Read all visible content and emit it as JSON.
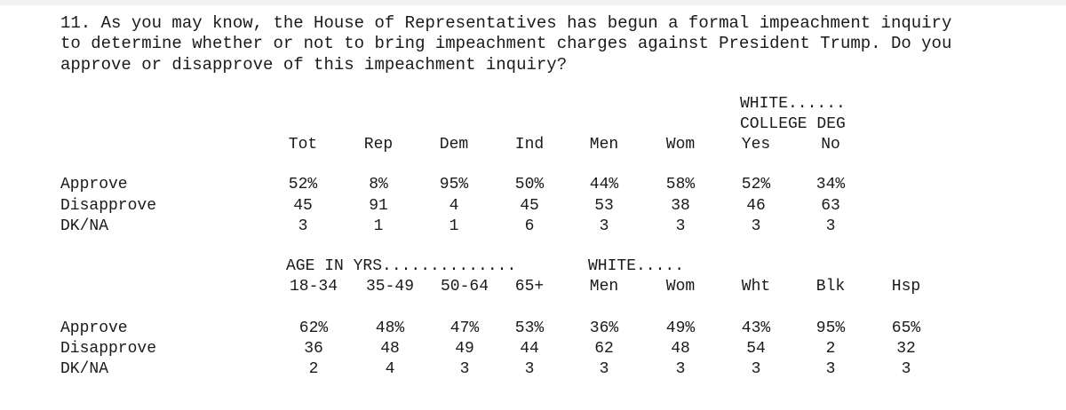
{
  "question": {
    "line1": "11. As you may know, the House of Representatives has begun a formal impeachment inquiry",
    "line2": "to determine whether or not to bring impeachment charges against President Trump. Do you",
    "line3": "approve or disapprove of this impeachment inquiry?"
  },
  "table1": {
    "group_headers": [
      {
        "line1": "WHITE......",
        "line2": "COLLEGE DEG"
      }
    ],
    "columns": [
      "Tot",
      "Rep",
      "Dem",
      "Ind",
      "Men",
      "Wom",
      "Yes",
      "No"
    ],
    "rows": [
      {
        "label": "Approve",
        "values": [
          "52%",
          "8%",
          "95%",
          "50%",
          "44%",
          "58%",
          "52%",
          "34%"
        ]
      },
      {
        "label": "Disapprove",
        "values": [
          "45",
          "91",
          "4",
          "45",
          "53",
          "38",
          "46",
          "63"
        ]
      },
      {
        "label": "DK/NA",
        "values": [
          "3",
          "1",
          "1",
          "6",
          "3",
          "3",
          "3",
          "3"
        ]
      }
    ]
  },
  "table2": {
    "group_headers": [
      {
        "line1": "AGE IN YRS.............."
      },
      {
        "line1": "WHITE....."
      }
    ],
    "columns": [
      "18-34",
      "35-49",
      "50-64",
      "65+",
      "Men",
      "Wom",
      "Wht",
      "Blk",
      "Hsp"
    ],
    "rows": [
      {
        "label": "Approve",
        "values": [
          "62%",
          "48%",
          "47%",
          "53%",
          "36%",
          "49%",
          "43%",
          "95%",
          "65%"
        ]
      },
      {
        "label": "Disapprove",
        "values": [
          "36",
          "48",
          "49",
          "44",
          "62",
          "48",
          "54",
          "2",
          "32"
        ]
      },
      {
        "label": "DK/NA",
        "values": [
          "2",
          "4",
          "3",
          "3",
          "3",
          "3",
          "3",
          "3",
          "3"
        ]
      }
    ]
  }
}
